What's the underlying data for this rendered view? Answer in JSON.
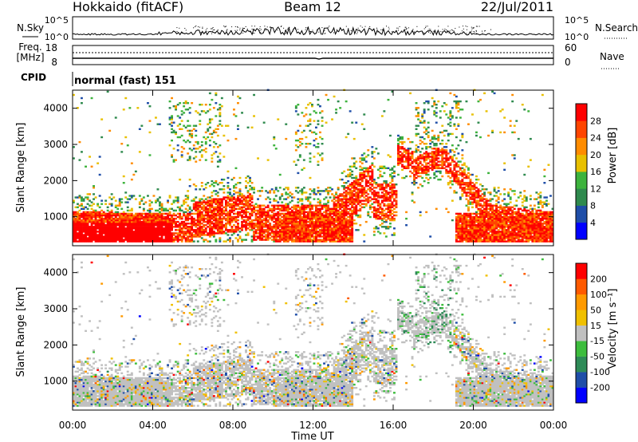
{
  "header": {
    "station": "Hokkaido (fitACF)",
    "beam": "Beam 12",
    "date": "22/Jul/2011"
  },
  "top_strip": {
    "left_label": "N.Sky",
    "right_label": "N.Search",
    "left_ticks": [
      "10^5",
      "10^0"
    ],
    "right_ticks": [
      "10^5",
      "10^0"
    ]
  },
  "freq_strip": {
    "left_label_line1": "Freq.",
    "left_label_line2": "[MHz]",
    "right_label": "Nave",
    "left_ticks": [
      "18",
      "8"
    ],
    "right_ticks": [
      "60",
      "0"
    ]
  },
  "cpid": {
    "label": "CPID",
    "text": "normal (fast) 151"
  },
  "colors": {
    "power": [
      "#0000ff",
      "#1f4ea8",
      "#2f8a4e",
      "#3db33d",
      "#e8c000",
      "#ff8c00",
      "#ff4500",
      "#ff0000"
    ],
    "velocity": [
      "#ff0000",
      "#ff5a00",
      "#ff9a00",
      "#f0c000",
      "#c0c0c0",
      "#3dbd3d",
      "#2e8b57",
      "#1f4ea8",
      "#0000ff"
    ],
    "ground_scatter": "#c0c0c0"
  },
  "chart_data": [
    {
      "type": "heatmap",
      "name": "power",
      "ylabel": "Slant Range [km]",
      "yticks": [
        "1000",
        "2000",
        "3000",
        "4000"
      ],
      "ylim": [
        200,
        4500
      ],
      "xlim_hours": [
        0,
        24
      ],
      "colorbar_label": "Power [dB]",
      "colorbar_ticks": [
        "4",
        "8",
        "12",
        "16",
        "20",
        "24",
        "28"
      ],
      "colorbar_range": [
        0,
        30
      ]
    },
    {
      "type": "heatmap",
      "name": "velocity",
      "ylabel": "Slant Range [km]",
      "yticks": [
        "1000",
        "2000",
        "3000",
        "4000"
      ],
      "ylim": [
        200,
        4500
      ],
      "xlim_hours": [
        0,
        24
      ],
      "xticks": [
        "00:00",
        "04:00",
        "08:00",
        "12:00",
        "16:00",
        "20:00",
        "00:00"
      ],
      "xlabel": "Time UT",
      "colorbar_label": "Velocity [m s⁻¹]",
      "colorbar_ticks": [
        "200",
        "100",
        "50",
        "15",
        "-15",
        "-50",
        "-100",
        "-200"
      ],
      "colorbar_range": [
        -250,
        250
      ]
    }
  ]
}
